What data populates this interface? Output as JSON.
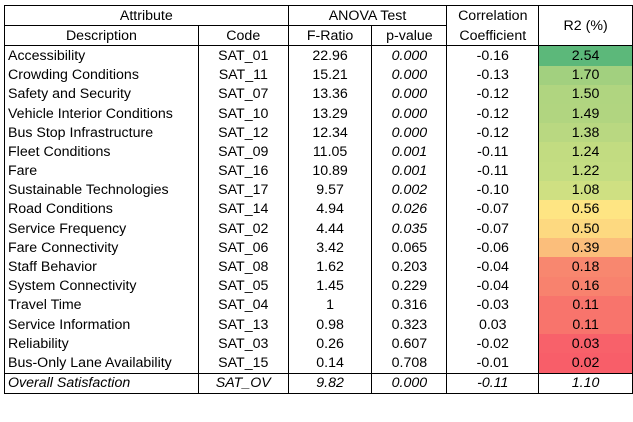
{
  "headers": {
    "attribute": "Attribute",
    "anova": "ANOVA Test",
    "correlation_line1": "Correlation",
    "correlation_line2": "Coefficient",
    "r2": "R2 (%)",
    "description": "Description",
    "code": "Code",
    "f_ratio": "F-Ratio",
    "p_value": "p-value"
  },
  "rows": [
    {
      "description": "Accessibility",
      "code": "SAT_01",
      "f": "22.96",
      "p": "0.000",
      "p_italic": true,
      "corr": "-0.16",
      "r2": "2.54",
      "color": "#5cb87a"
    },
    {
      "description": "Crowding Conditions",
      "code": "SAT_11",
      "f": "15.21",
      "p": "0.000",
      "p_italic": true,
      "corr": "-0.13",
      "r2": "1.70",
      "color": "#a2d07f"
    },
    {
      "description": "Safety and Security",
      "code": "SAT_07",
      "f": "13.36",
      "p": "0.000",
      "p_italic": true,
      "corr": "-0.12",
      "r2": "1.50",
      "color": "#b0d580"
    },
    {
      "description": "Vehicle Interior Conditions",
      "code": "SAT_10",
      "f": "13.29",
      "p": "0.000",
      "p_italic": true,
      "corr": "-0.12",
      "r2": "1.49",
      "color": "#b1d580"
    },
    {
      "description": "Bus Stop Infrastructure",
      "code": "SAT_12",
      "f": "12.34",
      "p": "0.000",
      "p_italic": true,
      "corr": "-0.12",
      "r2": "1.38",
      "color": "#b9d881"
    },
    {
      "description": "Fleet Conditions",
      "code": "SAT_09",
      "f": "11.05",
      "p": "0.001",
      "p_italic": true,
      "corr": "-0.11",
      "r2": "1.24",
      "color": "#c2dc81"
    },
    {
      "description": "Fare",
      "code": "SAT_16",
      "f": "10.89",
      "p": "0.001",
      "p_italic": true,
      "corr": "-0.11",
      "r2": "1.22",
      "color": "#c4dd82"
    },
    {
      "description": "Sustainable Technologies",
      "code": "SAT_17",
      "f": "9.57",
      "p": "0.002",
      "p_italic": true,
      "corr": "-0.10",
      "r2": "1.08",
      "color": "#cfe082"
    },
    {
      "description": "Road Conditions",
      "code": "SAT_14",
      "f": "4.94",
      "p": "0.026",
      "p_italic": true,
      "corr": "-0.07",
      "r2": "0.56",
      "color": "#fee583"
    },
    {
      "description": "Service Frequency",
      "code": "SAT_02",
      "f": "4.44",
      "p": "0.035",
      "p_italic": true,
      "corr": "-0.07",
      "r2": "0.50",
      "color": "#fdd980"
    },
    {
      "description": "Fare Connectivity",
      "code": "SAT_06",
      "f": "3.42",
      "p": "0.065",
      "p_italic": false,
      "corr": "-0.06",
      "r2": "0.39",
      "color": "#fbbe7b"
    },
    {
      "description": "Staff Behavior",
      "code": "SAT_08",
      "f": "1.62",
      "p": "0.203",
      "p_italic": false,
      "corr": "-0.04",
      "r2": "0.18",
      "color": "#f8876f"
    },
    {
      "description": "System Connectivity",
      "code": "SAT_05",
      "f": "1.45",
      "p": "0.229",
      "p_italic": false,
      "corr": "-0.04",
      "r2": "0.16",
      "color": "#f8826e"
    },
    {
      "description": "Travel Time",
      "code": "SAT_04",
      "f": "1",
      "p": "0.316",
      "p_italic": false,
      "corr": "-0.03",
      "r2": "0.11",
      "color": "#f8746c"
    },
    {
      "description": "Service Information",
      "code": "SAT_13",
      "f": "0.98",
      "p": "0.323",
      "p_italic": false,
      "corr": "0.03",
      "r2": "0.11",
      "color": "#f8746c"
    },
    {
      "description": "Reliability",
      "code": "SAT_03",
      "f": "0.26",
      "p": "0.607",
      "p_italic": false,
      "corr": "-0.02",
      "r2": "0.03",
      "color": "#f8616a"
    },
    {
      "description": "Bus-Only Lane Availability",
      "code": "SAT_15",
      "f": "0.14",
      "p": "0.708",
      "p_italic": false,
      "corr": "-0.01",
      "r2": "0.02",
      "color": "#f85e69"
    }
  ],
  "overall": {
    "description": "Overall Satisfaction",
    "code": "SAT_OV",
    "f": "9.82",
    "p": "0.000",
    "corr": "-0.11",
    "r2": "1.10"
  }
}
